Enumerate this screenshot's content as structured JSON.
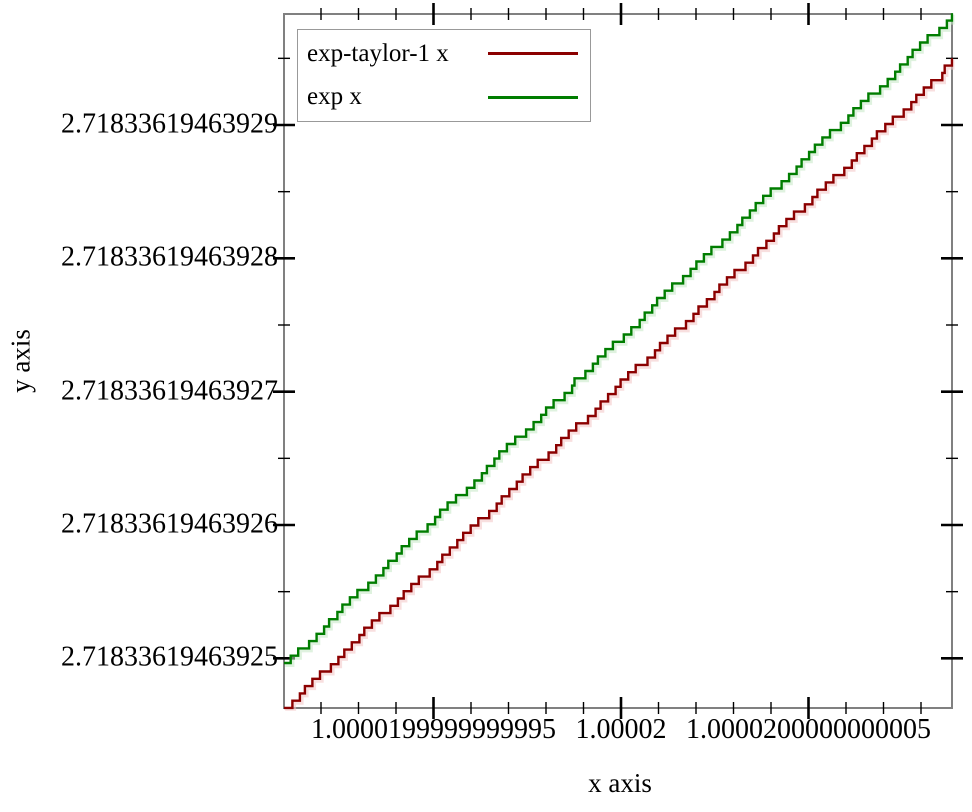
{
  "figure": {
    "background": "#ffffff",
    "plot_border_color": "#808080",
    "tick_color": "#000000",
    "text_color": "#000000",
    "legend_border_color": "#999999"
  },
  "chart_data": {
    "type": "line",
    "style": "staircase (floating-point quantized function plot)",
    "title": "",
    "xlabel": "x axis",
    "ylabel": "y axis",
    "legend_position": "top-left",
    "grid": false,
    "x_axis": {
      "offset_unit": "1e-16 relative to 1.00002",
      "range_values": [
        "1.0000199999999991",
        "1.0000200000000009"
      ],
      "range_off": [
        -8.987,
        8.827
      ],
      "major_ticks": [
        {
          "label": "1.0000199999999995",
          "off": -5
        },
        {
          "label": "1.00002",
          "off": 0
        },
        {
          "label": "1.0000200000000005",
          "off": 5
        }
      ],
      "minor_tick_offsets": [
        -8,
        -7,
        -6,
        -4,
        -3,
        -2,
        -1,
        1,
        2,
        3,
        4,
        6,
        7,
        8
      ]
    },
    "y_axis": {
      "offset_unit": "1e-14 relative to 2.71833619463925",
      "range_values": [
        "2.7183361946392463",
        "2.7183361946392983"
      ],
      "range_off": [
        -0.3725,
        4.8325
      ],
      "major_ticks": [
        {
          "label": "2.71833619463929",
          "off": 4
        },
        {
          "label": "2.71833619463928",
          "off": 3
        },
        {
          "label": "2.71833619463927",
          "off": 2
        },
        {
          "label": "2.71833619463926",
          "off": 1
        },
        {
          "label": "2.71833619463925",
          "off": 0
        }
      ],
      "minor_tick_offsets": [
        4.5,
        3.5,
        2.5,
        1.5,
        0.5
      ]
    },
    "step_quantum_y": "~5e-16 per step (binary64 rounding staircase)",
    "series": [
      {
        "name": "exp-taylor-1 x",
        "color": "#8b0000",
        "halo": "#f2c4c4",
        "x_at_left": "1.0000199999999991",
        "y_at_left": "2.7183361946392463",
        "x_at_right": "1.0000200000000009",
        "y_at_right": "2.7183361946392947",
        "start": {
          "x_off": -8.987,
          "y_off": -0.3725
        },
        "end": {
          "x_off": 8.827,
          "y_off": 4.48
        }
      },
      {
        "name": "exp x",
        "color": "#007d00",
        "halo": "#c4e7c4",
        "x_at_left": "1.0000199999999991",
        "y_at_left": "2.7183361946392497",
        "x_at_right": "1.0000200000000009",
        "y_at_right": "2.7183361946392983",
        "start": {
          "x_off": -8.987,
          "y_off": -0.035
        },
        "end": {
          "x_off": 8.827,
          "y_off": 4.8325
        }
      }
    ]
  }
}
